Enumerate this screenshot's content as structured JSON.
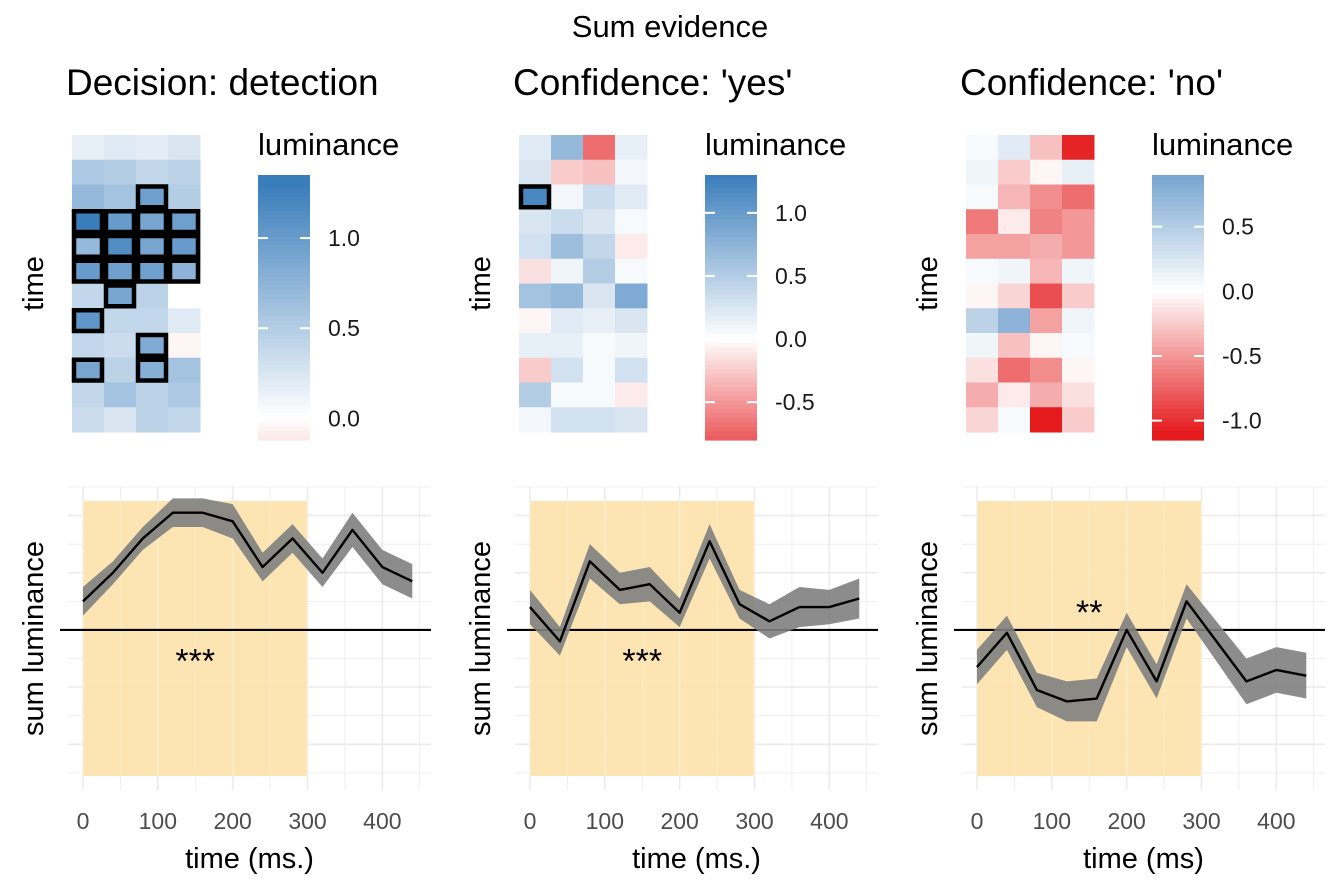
{
  "title": "Sum evidence",
  "colors": {
    "blue": "#3A7DBB",
    "white": "#FFFFFF",
    "red": "#E41A1C",
    "highlight": "#FCE4AE",
    "ribbon": "#7F7F7F",
    "line": "#000000",
    "grid": "#EBEBEB"
  },
  "panels": [
    {
      "title": "Decision: detection",
      "heatmap": {
        "ylabel": "time",
        "legend_title": "luminance",
        "legend_ticks": [
          "1.0",
          "0.5",
          "0.0"
        ],
        "legend_tick_values": [
          1.0,
          0.5,
          0.0
        ],
        "range": [
          -0.12,
          1.35
        ],
        "rows": 12,
        "cols": 4,
        "values": [
          [
            0.15,
            0.22,
            0.18,
            0.25
          ],
          [
            0.55,
            0.5,
            0.4,
            0.45
          ],
          [
            0.7,
            0.6,
            0.95,
            0.5
          ],
          [
            1.3,
            1.0,
            0.9,
            0.95
          ],
          [
            0.7,
            1.15,
            0.9,
            1.0
          ],
          [
            1.0,
            0.95,
            0.95,
            0.75
          ],
          [
            0.4,
            0.9,
            0.45,
            0.0
          ],
          [
            1.05,
            0.4,
            0.4,
            0.2
          ],
          [
            0.4,
            0.35,
            0.85,
            -0.05
          ],
          [
            0.9,
            0.45,
            0.8,
            0.6
          ],
          [
            0.4,
            0.6,
            0.45,
            0.55
          ],
          [
            0.35,
            0.25,
            0.45,
            0.4
          ]
        ],
        "outlined": [
          [
            2,
            2
          ],
          [
            3,
            0
          ],
          [
            3,
            1
          ],
          [
            3,
            2
          ],
          [
            3,
            3
          ],
          [
            4,
            0
          ],
          [
            4,
            1
          ],
          [
            4,
            2
          ],
          [
            4,
            3
          ],
          [
            5,
            0
          ],
          [
            5,
            1
          ],
          [
            5,
            2
          ],
          [
            5,
            3
          ],
          [
            6,
            1
          ],
          [
            7,
            0
          ],
          [
            8,
            2
          ],
          [
            9,
            0
          ],
          [
            9,
            2
          ]
        ]
      },
      "line": {
        "ylabel": "sum luminance",
        "xlabel": "time (ms.)",
        "x_ticks": [
          "0",
          "100",
          "200",
          "300",
          "400"
        ],
        "x_tick_values": [
          0,
          100,
          200,
          300,
          400
        ],
        "xlim": [
          -20,
          465
        ],
        "ylim": [
          -2.8,
          2.5
        ],
        "highlight": [
          0,
          300
        ],
        "annotation": "***",
        "annotation_pos": [
          150,
          -0.5
        ],
        "x": [
          0,
          40,
          80,
          120,
          160,
          200,
          240,
          280,
          320,
          360,
          400,
          440
        ],
        "y": [
          0.5,
          1.0,
          1.6,
          2.05,
          2.05,
          1.9,
          1.1,
          1.6,
          1.0,
          1.75,
          1.1,
          0.85
        ],
        "lower": [
          0.25,
          0.8,
          1.4,
          1.8,
          1.8,
          1.6,
          0.85,
          1.35,
          0.75,
          1.45,
          0.8,
          0.55
        ],
        "upper": [
          0.75,
          1.2,
          1.8,
          2.3,
          2.3,
          2.2,
          1.35,
          1.85,
          1.25,
          2.05,
          1.4,
          1.15
        ]
      }
    },
    {
      "title": "Confidence: 'yes'",
      "heatmap": {
        "ylabel": "time",
        "legend_title": "luminance",
        "legend_ticks": [
          "1.0",
          "0.5",
          "0.0",
          "-0.5"
        ],
        "legend_tick_values": [
          1.0,
          0.5,
          0.0,
          -0.5
        ],
        "range": [
          -0.8,
          1.3
        ],
        "rows": 12,
        "cols": 4,
        "values": [
          [
            0.2,
            0.7,
            -0.7,
            0.15
          ],
          [
            0.25,
            -0.25,
            -0.3,
            0.08
          ],
          [
            1.2,
            0.08,
            0.35,
            0.2
          ],
          [
            0.25,
            0.35,
            0.25,
            0.05
          ],
          [
            0.3,
            0.65,
            0.4,
            -0.1
          ],
          [
            -0.15,
            0.1,
            0.5,
            0.05
          ],
          [
            0.6,
            0.7,
            0.25,
            0.85
          ],
          [
            -0.05,
            0.2,
            0.15,
            0.25
          ],
          [
            0.15,
            0.15,
            0.05,
            0.1
          ],
          [
            -0.25,
            0.3,
            0.05,
            0.3
          ],
          [
            0.5,
            0.05,
            0.05,
            -0.1
          ],
          [
            0.08,
            0.3,
            0.3,
            0.25
          ]
        ],
        "outlined": [
          [
            2,
            0
          ]
        ]
      },
      "line": {
        "ylabel": "sum luminance",
        "xlabel": "time (ms.)",
        "x_ticks": [
          "0",
          "100",
          "200",
          "300",
          "400"
        ],
        "x_tick_values": [
          0,
          100,
          200,
          300,
          400
        ],
        "xlim": [
          -20,
          465
        ],
        "ylim": [
          -2.8,
          2.5
        ],
        "highlight": [
          0,
          300
        ],
        "annotation": "***",
        "annotation_pos": [
          150,
          -0.5
        ],
        "x": [
          0,
          40,
          80,
          120,
          160,
          200,
          240,
          280,
          320,
          360,
          400,
          440
        ],
        "y": [
          0.4,
          -0.2,
          1.2,
          0.7,
          0.8,
          0.3,
          1.55,
          0.45,
          0.15,
          0.4,
          0.4,
          0.55
        ],
        "lower": [
          0.1,
          -0.45,
          0.9,
          0.45,
          0.5,
          0.05,
          1.25,
          0.2,
          -0.15,
          0.05,
          0.1,
          0.2
        ],
        "upper": [
          0.7,
          0.05,
          1.5,
          1.0,
          1.1,
          0.55,
          1.85,
          0.7,
          0.45,
          0.75,
          0.7,
          0.9
        ]
      }
    },
    {
      "title": "Confidence: 'no'",
      "heatmap": {
        "ylabel": "time",
        "legend_title": "luminance",
        "legend_ticks": [
          "0.5",
          "0.0",
          "-0.5",
          "-1.0"
        ],
        "legend_tick_values": [
          0.5,
          0.0,
          -0.5,
          -1.0
        ],
        "range": [
          -1.15,
          0.9
        ],
        "rows": 12,
        "cols": 4,
        "values": [
          [
            0.05,
            0.2,
            -0.3,
            -1.05
          ],
          [
            0.1,
            -0.25,
            -0.05,
            0.15
          ],
          [
            0.05,
            -0.35,
            -0.55,
            -0.7
          ],
          [
            -0.65,
            -0.1,
            -0.6,
            -0.5
          ],
          [
            -0.45,
            -0.45,
            -0.4,
            -0.5
          ],
          [
            0.05,
            0.1,
            -0.35,
            0.1
          ],
          [
            -0.05,
            -0.2,
            -0.85,
            -0.25
          ],
          [
            0.45,
            0.75,
            -0.45,
            0.1
          ],
          [
            0.1,
            -0.3,
            -0.05,
            0.05
          ],
          [
            -0.15,
            -0.7,
            -0.55,
            -0.05
          ],
          [
            -0.4,
            -0.1,
            -0.4,
            -0.15
          ],
          [
            -0.2,
            0.05,
            -1.1,
            -0.25
          ]
        ],
        "outlined": []
      },
      "line": {
        "ylabel": "sum luminance",
        "xlabel": "time (ms)",
        "x_ticks": [
          "0",
          "100",
          "200",
          "300",
          "400"
        ],
        "x_tick_values": [
          0,
          100,
          200,
          300,
          400
        ],
        "xlim": [
          -20,
          465
        ],
        "ylim": [
          -2.8,
          2.5
        ],
        "highlight": [
          0,
          300
        ],
        "annotation": "**",
        "annotation_pos": [
          150,
          0.35
        ],
        "x": [
          0,
          40,
          80,
          120,
          160,
          200,
          240,
          280,
          320,
          360,
          400,
          440
        ],
        "y": [
          -0.65,
          -0.05,
          -1.05,
          -1.25,
          -1.2,
          0.0,
          -0.9,
          0.5,
          -0.2,
          -0.9,
          -0.7,
          -0.8
        ],
        "lower": [
          -0.95,
          -0.35,
          -1.35,
          -1.6,
          -1.6,
          -0.3,
          -1.2,
          0.2,
          -0.55,
          -1.3,
          -1.1,
          -1.2
        ],
        "upper": [
          -0.35,
          0.25,
          -0.75,
          -0.9,
          -0.85,
          0.3,
          -0.6,
          0.8,
          0.15,
          -0.5,
          -0.3,
          -0.4
        ]
      }
    }
  ]
}
